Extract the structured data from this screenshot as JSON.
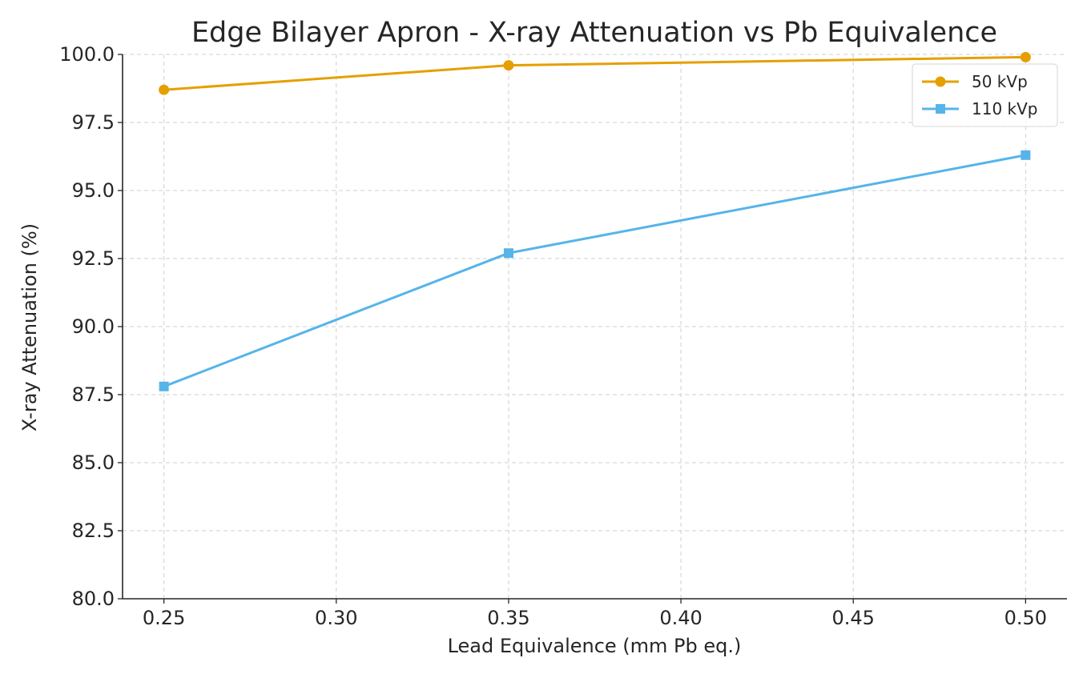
{
  "chart_data": {
    "type": "line",
    "title": "Edge Bilayer Apron - X-ray Attenuation vs Pb Equivalence",
    "xlabel": "Lead Equivalence (mm Pb eq.)",
    "ylabel": "X-ray Attenuation (%)",
    "x": [
      0.25,
      0.35,
      0.5
    ],
    "xlim": [
      0.238,
      0.512
    ],
    "ylim": [
      80.0,
      100.0
    ],
    "xticks": [
      "0.25",
      "0.30",
      "0.35",
      "0.40",
      "0.45",
      "0.50"
    ],
    "yticks": [
      "80.0",
      "82.5",
      "85.0",
      "87.5",
      "90.0",
      "92.5",
      "95.0",
      "97.5",
      "100.0"
    ],
    "grid": true,
    "legend_position": "top-right",
    "series": [
      {
        "name": "50 kVp",
        "values": [
          98.7,
          99.6,
          99.9
        ],
        "color": "#E69F00",
        "marker": "circle"
      },
      {
        "name": "110 kVp",
        "values": [
          87.8,
          92.7,
          96.3
        ],
        "color": "#56B4E9",
        "marker": "square"
      }
    ]
  }
}
